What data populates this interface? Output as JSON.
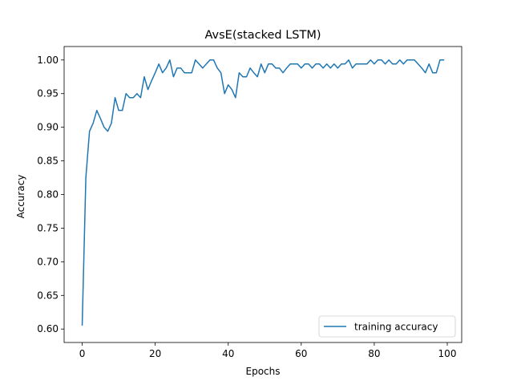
{
  "chart_data": {
    "type": "line",
    "title": "AvsE(stacked LSTM)",
    "xlabel": "Epochs",
    "ylabel": "Accuracy",
    "xlim": [
      -4.95,
      103.95
    ],
    "ylim": [
      0.58,
      1.02
    ],
    "xticks": [
      0,
      20,
      40,
      60,
      80,
      100
    ],
    "yticks": [
      0.6,
      0.65,
      0.7,
      0.75,
      0.8,
      0.85,
      0.9,
      0.95,
      1.0
    ],
    "xtick_labels": [
      "0",
      "20",
      "40",
      "60",
      "80",
      "100"
    ],
    "ytick_labels": [
      "0.60",
      "0.65",
      "0.70",
      "0.75",
      "0.80",
      "0.85",
      "0.90",
      "0.95",
      "1.00"
    ],
    "grid": false,
    "legend_position": "lower-right",
    "series": [
      {
        "name": "training accuracy",
        "color": "#1f77b4",
        "x": [
          0,
          1,
          2,
          3,
          4,
          5,
          6,
          7,
          8,
          9,
          10,
          11,
          12,
          13,
          14,
          15,
          16,
          17,
          18,
          19,
          20,
          21,
          22,
          23,
          24,
          25,
          26,
          27,
          28,
          29,
          30,
          31,
          32,
          33,
          34,
          35,
          36,
          37,
          38,
          39,
          40,
          41,
          42,
          43,
          44,
          45,
          46,
          47,
          48,
          49,
          50,
          51,
          52,
          53,
          54,
          55,
          56,
          57,
          58,
          59,
          60,
          61,
          62,
          63,
          64,
          65,
          66,
          67,
          68,
          69,
          70,
          71,
          72,
          73,
          74,
          75,
          76,
          77,
          78,
          79,
          80,
          81,
          82,
          83,
          84,
          85,
          86,
          87,
          88,
          89,
          90,
          91,
          92,
          93,
          94,
          95,
          96,
          97,
          98,
          99
        ],
        "values": [
          0.606,
          0.825,
          0.894,
          0.906,
          0.925,
          0.913,
          0.9,
          0.894,
          0.906,
          0.944,
          0.925,
          0.925,
          0.95,
          0.944,
          0.944,
          0.95,
          0.944,
          0.975,
          0.956,
          0.969,
          0.981,
          0.994,
          0.981,
          0.988,
          1.0,
          0.975,
          0.988,
          0.988,
          0.981,
          0.981,
          0.981,
          1.0,
          0.994,
          0.988,
          0.994,
          1.0,
          1.0,
          0.988,
          0.981,
          0.95,
          0.963,
          0.956,
          0.944,
          0.981,
          0.975,
          0.975,
          0.988,
          0.981,
          0.975,
          0.994,
          0.981,
          0.994,
          0.994,
          0.988,
          0.988,
          0.981,
          0.988,
          0.994,
          0.994,
          0.994,
          0.988,
          0.994,
          0.994,
          0.988,
          0.994,
          0.994,
          0.988,
          0.994,
          0.988,
          0.994,
          0.988,
          0.994,
          0.994,
          1.0,
          0.988,
          0.994,
          0.994,
          0.994,
          0.994,
          1.0,
          0.994,
          1.0,
          1.0,
          0.994,
          1.0,
          0.994,
          0.994,
          1.0,
          0.994,
          1.0,
          1.0,
          1.0,
          0.994,
          0.988,
          0.981,
          0.994,
          0.981,
          0.981,
          1.0,
          1.0
        ]
      }
    ]
  }
}
